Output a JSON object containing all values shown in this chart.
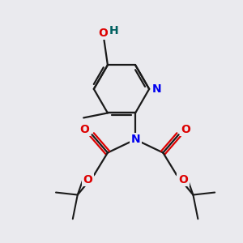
{
  "background_color": "#eaeaee",
  "bond_color": "#1a1a1a",
  "N_color": "#0000ee",
  "O_color": "#dd0000",
  "H_color": "#006060",
  "figsize": [
    3.0,
    3.0
  ],
  "dpi": 100,
  "xlim": [
    0,
    10
  ],
  "ylim": [
    0,
    10
  ]
}
